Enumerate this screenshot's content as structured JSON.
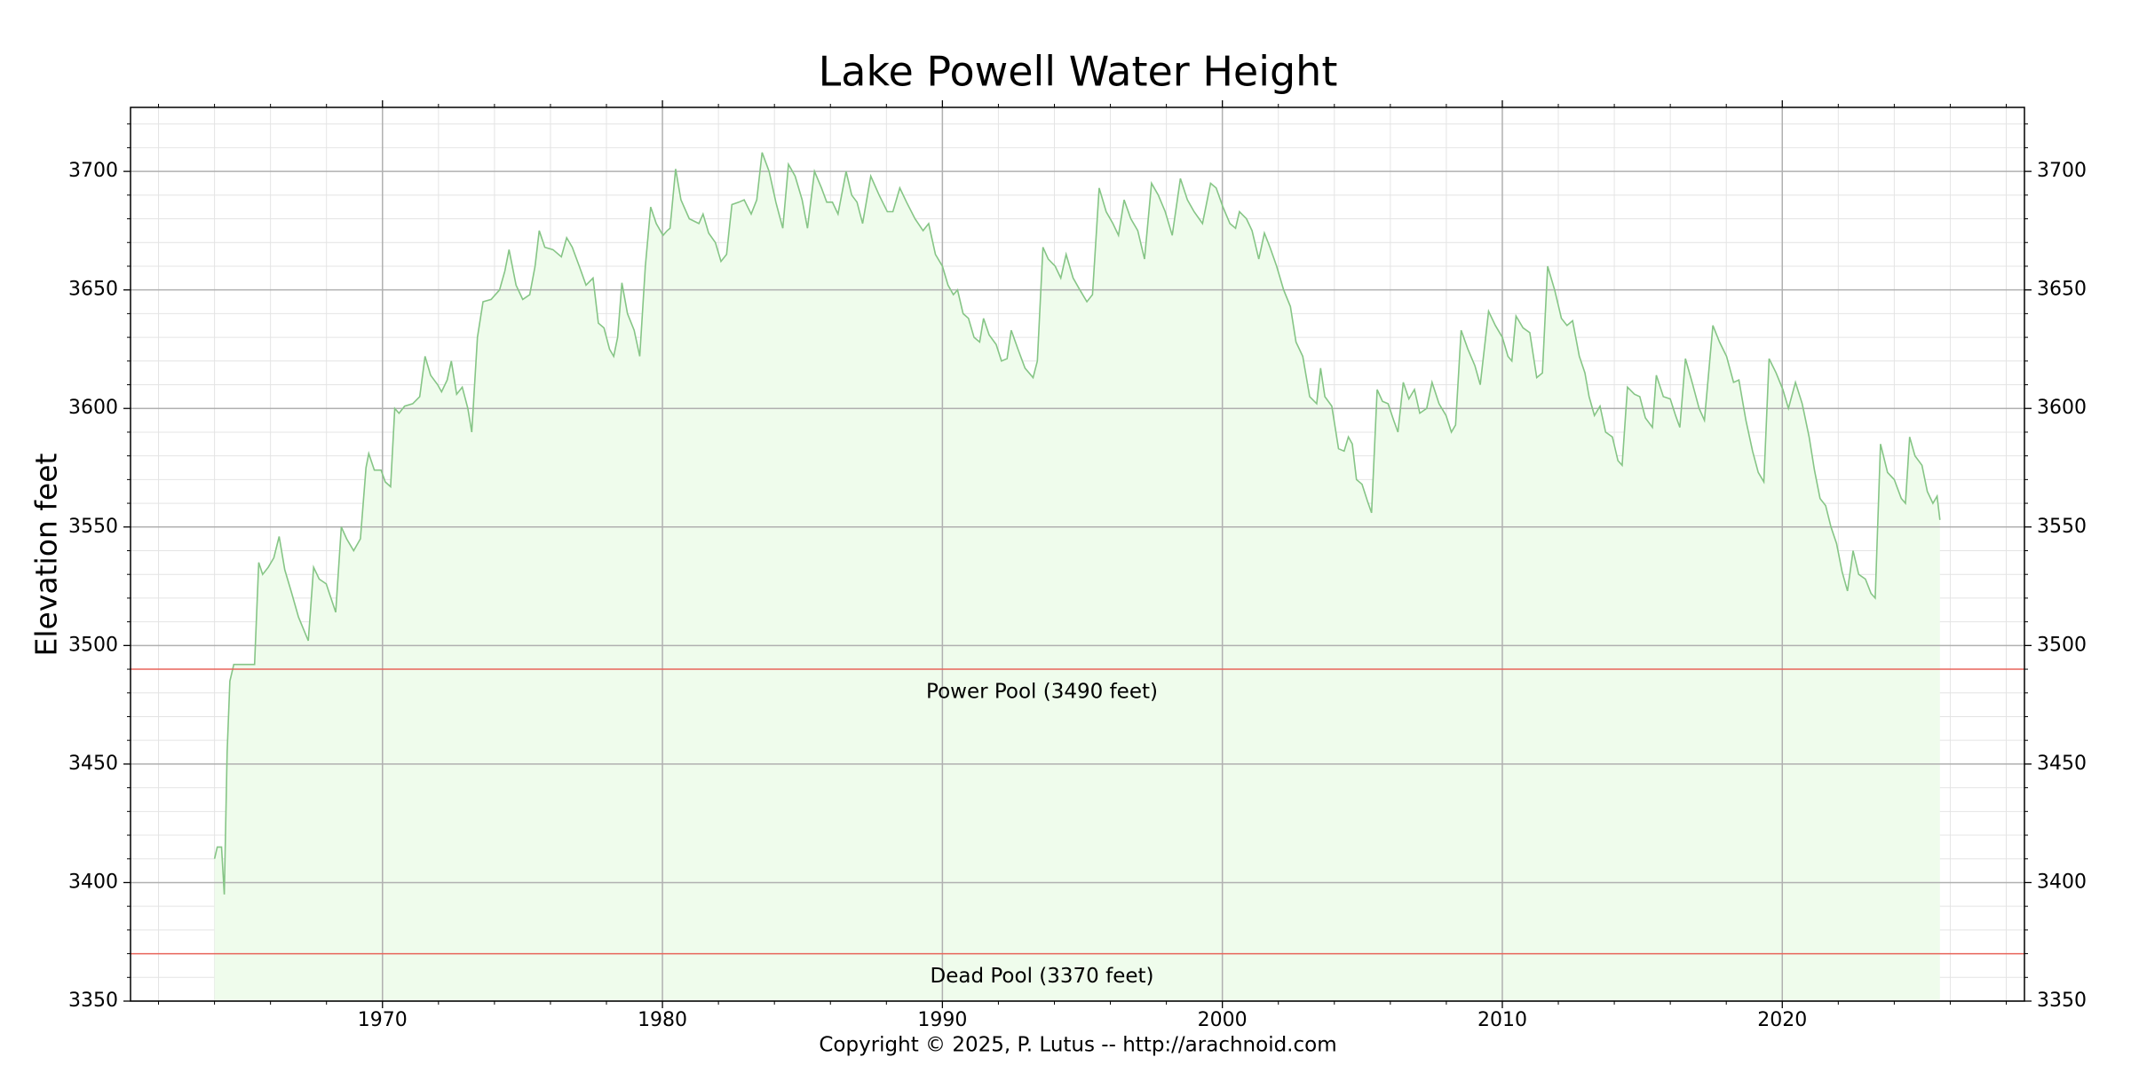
{
  "chart_data": {
    "type": "area-line",
    "title": "Lake Powell Water Height",
    "ylabel": "Elevation feet",
    "footer": "Copyright © 2025, P. Lutus -- http://arachnoid.com",
    "xlim": [
      1961,
      2028.65
    ],
    "xticks": [
      1970,
      1980,
      1990,
      2000,
      2010,
      2020
    ],
    "xminorticks": [
      1962,
      1964,
      1966,
      1968,
      1972,
      1974,
      1976,
      1978,
      1982,
      1984,
      1986,
      1988,
      1992,
      1994,
      1996,
      1998,
      2002,
      2004,
      2006,
      2008,
      2012,
      2014,
      2016,
      2018,
      2022,
      2024,
      2026,
      2028
    ],
    "ylim": [
      3350,
      3727
    ],
    "yticks": [
      3350,
      3400,
      3450,
      3500,
      3550,
      3600,
      3650,
      3700
    ],
    "yminorticks": [
      3360,
      3370,
      3380,
      3390,
      3410,
      3420,
      3430,
      3440,
      3460,
      3470,
      3480,
      3490,
      3510,
      3520,
      3530,
      3540,
      3560,
      3570,
      3580,
      3590,
      3610,
      3620,
      3630,
      3640,
      3660,
      3670,
      3680,
      3690,
      3710,
      3720
    ],
    "grid": true,
    "minor_grid": true,
    "hlines": [
      {
        "value": 3490,
        "label": "Power Pool (3490 feet)",
        "color": "#e8645a"
      },
      {
        "value": 3370,
        "label": "Dead Pool (3370 feet)",
        "color": "#e8645a"
      }
    ],
    "x": [
      1964.0,
      1964.1,
      1964.25,
      1964.35,
      1964.45,
      1964.55,
      1964.69,
      1965.04,
      1965.43,
      1965.58,
      1965.72,
      1965.92,
      1966.12,
      1966.31,
      1966.51,
      1966.76,
      1967.0,
      1967.35,
      1967.54,
      1967.74,
      1967.99,
      1968.33,
      1968.53,
      1968.72,
      1968.97,
      1969.21,
      1969.41,
      1969.51,
      1969.71,
      1969.95,
      1970.1,
      1970.29,
      1970.44,
      1970.59,
      1970.79,
      1971.08,
      1971.33,
      1971.52,
      1971.72,
      1971.97,
      1972.11,
      1972.31,
      1972.46,
      1972.65,
      1972.85,
      1973.05,
      1973.19,
      1973.39,
      1973.59,
      1973.88,
      1974.18,
      1974.37,
      1974.52,
      1974.77,
      1975.01,
      1975.26,
      1975.45,
      1975.6,
      1975.8,
      1976.09,
      1976.39,
      1976.58,
      1976.78,
      1977.03,
      1977.27,
      1977.52,
      1977.71,
      1977.91,
      1978.11,
      1978.26,
      1978.4,
      1978.55,
      1978.75,
      1978.99,
      1979.19,
      1979.39,
      1979.58,
      1979.78,
      1980.02,
      1980.17,
      1980.27,
      1980.47,
      1980.66,
      1980.96,
      1981.3,
      1981.45,
      1981.65,
      1981.89,
      1982.09,
      1982.29,
      1982.48,
      1982.73,
      1982.92,
      1983.17,
      1983.37,
      1983.56,
      1983.81,
      1984.05,
      1984.3,
      1984.5,
      1984.74,
      1984.99,
      1985.18,
      1985.43,
      1985.68,
      1985.87,
      1986.07,
      1986.27,
      1986.56,
      1986.76,
      1986.95,
      1987.15,
      1987.44,
      1987.74,
      1988.03,
      1988.23,
      1988.48,
      1988.72,
      1989.02,
      1989.31,
      1989.51,
      1989.75,
      1990.0,
      1990.2,
      1990.39,
      1990.54,
      1990.74,
      1990.93,
      1991.13,
      1991.33,
      1991.47,
      1991.67,
      1991.92,
      1992.11,
      1992.31,
      1992.46,
      1992.7,
      1992.95,
      1993.24,
      1993.39,
      1993.59,
      1993.78,
      1994.03,
      1994.23,
      1994.42,
      1994.67,
      1994.91,
      1995.16,
      1995.36,
      1995.6,
      1995.85,
      1996.09,
      1996.29,
      1996.49,
      1996.73,
      1996.98,
      1997.22,
      1997.47,
      1997.71,
      1997.96,
      1998.21,
      1998.5,
      1998.75,
      1998.99,
      1999.29,
      1999.58,
      1999.78,
      2000.02,
      2000.27,
      2000.47,
      2000.61,
      2000.86,
      2001.06,
      2001.3,
      2001.5,
      2001.7,
      2001.94,
      2002.19,
      2002.43,
      2002.63,
      2002.87,
      2003.12,
      2003.37,
      2003.51,
      2003.66,
      2003.91,
      2004.15,
      2004.35,
      2004.5,
      2004.64,
      2004.79,
      2004.99,
      2005.18,
      2005.33,
      2005.53,
      2005.72,
      2005.92,
      2006.12,
      2006.27,
      2006.46,
      2006.66,
      2006.86,
      2007.05,
      2007.3,
      2007.49,
      2007.74,
      2007.99,
      2008.18,
      2008.33,
      2008.53,
      2008.77,
      2009.02,
      2009.21,
      2009.51,
      2009.75,
      2010.0,
      2010.2,
      2010.34,
      2010.49,
      2010.74,
      2010.98,
      2011.23,
      2011.43,
      2011.62,
      2011.87,
      2012.11,
      2012.31,
      2012.51,
      2012.75,
      2012.95,
      2013.1,
      2013.29,
      2013.49,
      2013.69,
      2013.93,
      2014.13,
      2014.28,
      2014.47,
      2014.72,
      2014.91,
      2015.11,
      2015.36,
      2015.5,
      2015.75,
      2016.0,
      2016.19,
      2016.34,
      2016.54,
      2016.78,
      2017.03,
      2017.22,
      2017.52,
      2017.76,
      2018.01,
      2018.26,
      2018.45,
      2018.7,
      2018.94,
      2019.14,
      2019.34,
      2019.53,
      2019.78,
      2020.02,
      2020.22,
      2020.47,
      2020.71,
      2020.96,
      2021.15,
      2021.35,
      2021.55,
      2021.74,
      2021.94,
      2022.14,
      2022.33,
      2022.53,
      2022.73,
      2022.97,
      2023.17,
      2023.32,
      2023.51,
      2023.76,
      2024.0,
      2024.25,
      2024.4,
      2024.55,
      2024.74,
      2024.99,
      2025.18,
      2025.38,
      2025.53,
      2025.63
    ],
    "series": [
      {
        "color": "#86c586",
        "fill": "#effcec",
        "values": [
          3410,
          3415,
          3415,
          3395,
          3455,
          3485,
          3492,
          3492,
          3492,
          3535,
          3530,
          3533,
          3537,
          3546,
          3532,
          3522,
          3512,
          3502,
          3533,
          3528,
          3526,
          3514,
          3550,
          3545,
          3540,
          3545,
          3575,
          3581,
          3574,
          3574,
          3569,
          3567,
          3600,
          3598,
          3601,
          3602,
          3605,
          3622,
          3614,
          3610,
          3607,
          3612,
          3620,
          3606,
          3609,
          3600,
          3590,
          3630,
          3645,
          3646,
          3650,
          3658,
          3667,
          3652,
          3646,
          3648,
          3660,
          3675,
          3668,
          3667,
          3664,
          3672,
          3668,
          3660,
          3652,
          3655,
          3636,
          3634,
          3625,
          3622,
          3630,
          3653,
          3640,
          3633,
          3622,
          3660,
          3685,
          3678,
          3673,
          3675,
          3676,
          3701,
          3688,
          3680,
          3678,
          3682,
          3674,
          3670,
          3662,
          3665,
          3686,
          3687,
          3688,
          3682,
          3688,
          3708,
          3700,
          3687,
          3676,
          3703,
          3698,
          3688,
          3676,
          3700,
          3693,
          3687,
          3687,
          3682,
          3700,
          3690,
          3687,
          3678,
          3698,
          3690,
          3683,
          3683,
          3693,
          3687,
          3680,
          3675,
          3678,
          3665,
          3660,
          3652,
          3648,
          3650,
          3640,
          3638,
          3630,
          3628,
          3638,
          3631,
          3627,
          3620,
          3621,
          3633,
          3625,
          3617,
          3613,
          3620,
          3668,
          3663,
          3660,
          3655,
          3665,
          3655,
          3650,
          3645,
          3648,
          3693,
          3683,
          3678,
          3673,
          3688,
          3680,
          3675,
          3663,
          3695,
          3690,
          3683,
          3673,
          3697,
          3688,
          3683,
          3678,
          3695,
          3693,
          3685,
          3678,
          3676,
          3683,
          3680,
          3675,
          3663,
          3674,
          3668,
          3660,
          3650,
          3643,
          3628,
          3622,
          3605,
          3602,
          3617,
          3605,
          3601,
          3583,
          3582,
          3588,
          3585,
          3570,
          3568,
          3561,
          3556,
          3608,
          3603,
          3602,
          3595,
          3590,
          3611,
          3604,
          3608,
          3598,
          3600,
          3611,
          3602,
          3597,
          3590,
          3593,
          3633,
          3625,
          3618,
          3610,
          3641,
          3635,
          3630,
          3622,
          3620,
          3639,
          3634,
          3632,
          3613,
          3615,
          3660,
          3650,
          3638,
          3635,
          3637,
          3622,
          3615,
          3605,
          3597,
          3601,
          3590,
          3588,
          3578,
          3576,
          3609,
          3606,
          3605,
          3596,
          3592,
          3614,
          3605,
          3604,
          3597,
          3592,
          3621,
          3611,
          3600,
          3595,
          3635,
          3628,
          3622,
          3611,
          3612,
          3595,
          3582,
          3573,
          3569,
          3621,
          3615,
          3608,
          3600,
          3611,
          3602,
          3588,
          3574,
          3562,
          3559,
          3550,
          3543,
          3531,
          3523,
          3540,
          3530,
          3528,
          3522,
          3520,
          3585,
          3573,
          3570,
          3562,
          3560,
          3588,
          3580,
          3576,
          3565,
          3560,
          3563,
          3553
        ]
      }
    ]
  }
}
